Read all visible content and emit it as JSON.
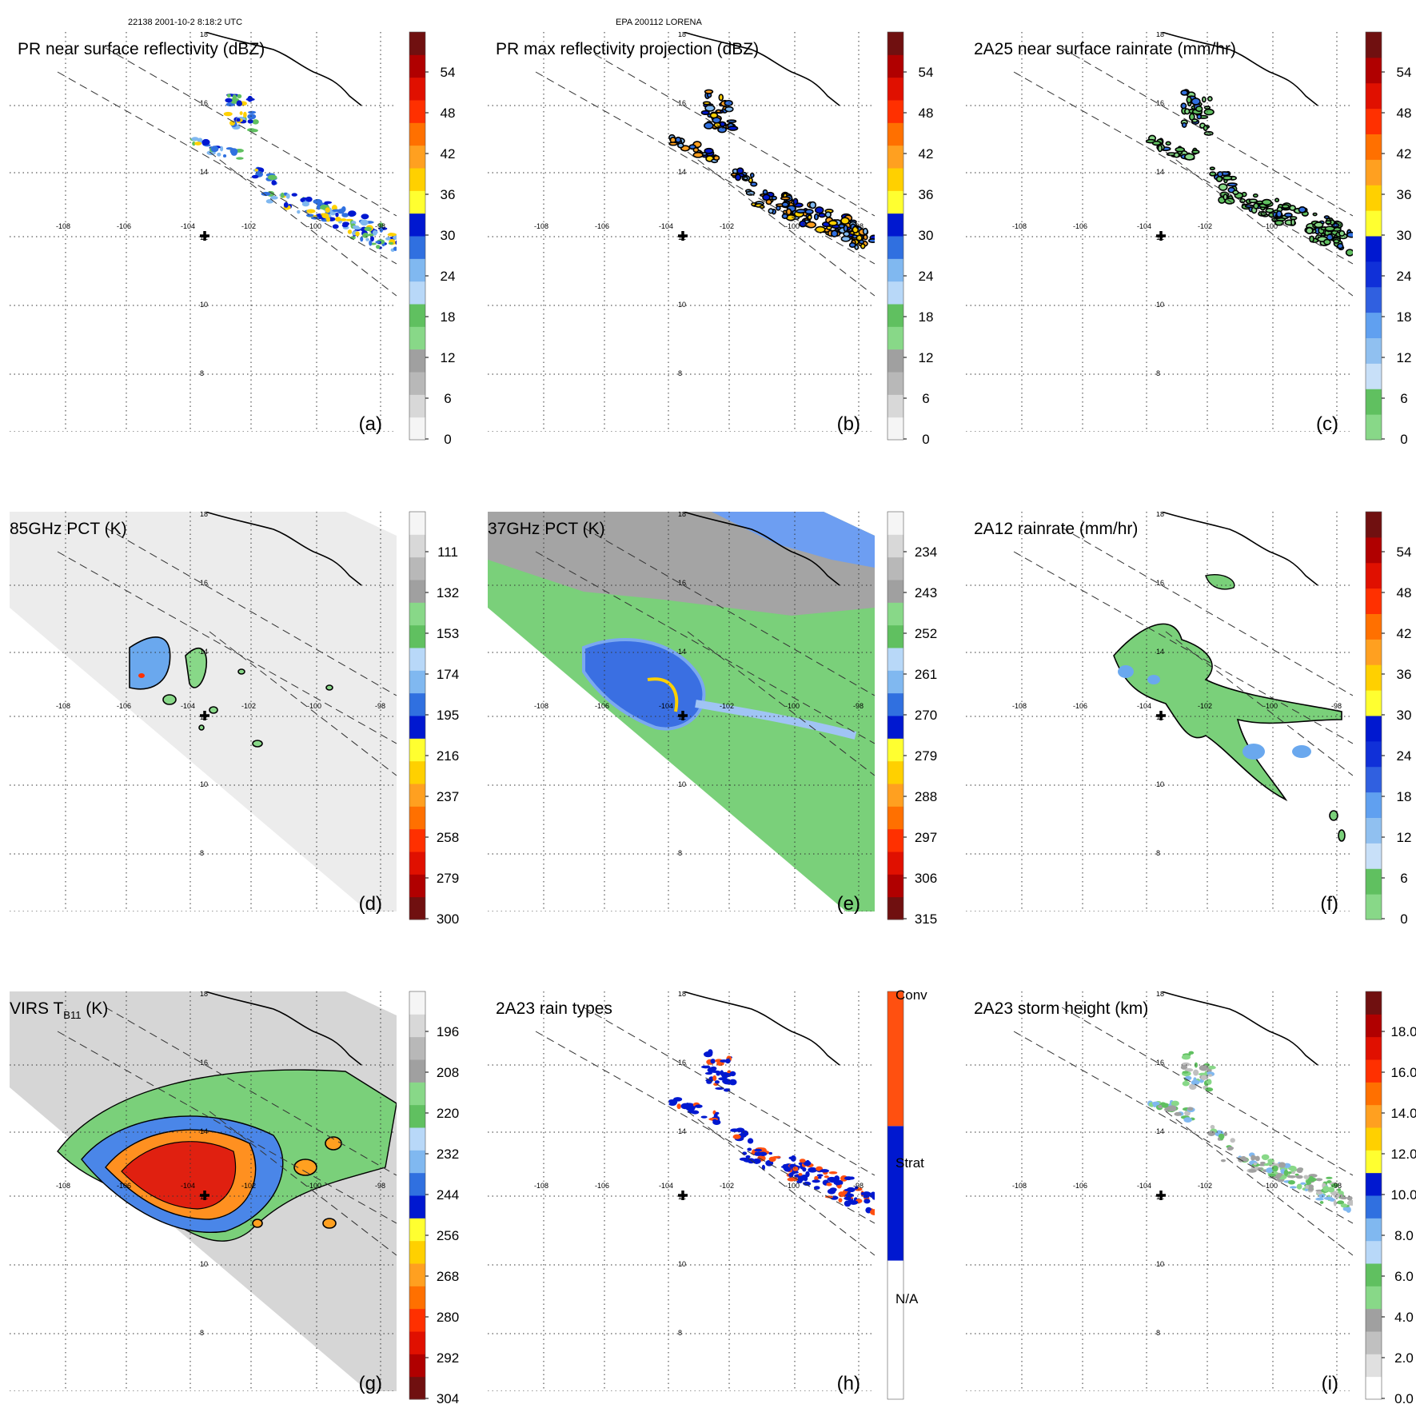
{
  "header": {
    "left": "22138 2001-10-2 8:18:2 UTC",
    "center": "EPA 200112 LORENA"
  },
  "lon_ticks": [
    "-108",
    "-106",
    "-104",
    "-102",
    "-100",
    "-98"
  ],
  "lat_ticks": [
    "18",
    "16",
    "14",
    "12",
    "10",
    "8"
  ],
  "panels": [
    {
      "id": "a",
      "label": "(a)",
      "title": "PR near surface reflectivity (dBZ)",
      "type": "swath_pr",
      "colorbar": {
        "scheme": "dbz",
        "ticks": [
          "54",
          "48",
          "42",
          "36",
          "30",
          "24",
          "18",
          "12",
          "6",
          "0"
        ]
      }
    },
    {
      "id": "b",
      "label": "(b)",
      "title": "PR max reflectivity projection (dBZ)",
      "type": "swath_pr",
      "colorbar": {
        "scheme": "dbz",
        "ticks": [
          "54",
          "48",
          "42",
          "36",
          "30",
          "24",
          "18",
          "12",
          "6",
          "0"
        ]
      }
    },
    {
      "id": "c",
      "label": "(c)",
      "title": "2A25 near surface rainrate (mm/hr)",
      "type": "swath_pr",
      "colorbar": {
        "scheme": "rain",
        "ticks": [
          "54",
          "48",
          "42",
          "36",
          "30",
          "24",
          "18",
          "12",
          "6",
          "0"
        ]
      }
    },
    {
      "id": "d",
      "label": "(d)",
      "title": "85GHz PCT (K)",
      "type": "tmi_gray",
      "colorbar": {
        "scheme": "pct",
        "ticks": [
          "111",
          "132",
          "153",
          "174",
          "195",
          "216",
          "237",
          "258",
          "279",
          "300"
        ]
      }
    },
    {
      "id": "e",
      "label": "(e)",
      "title": "37GHz PCT (K)",
      "type": "tmi_green",
      "colorbar": {
        "scheme": "pct",
        "ticks": [
          "234",
          "243",
          "252",
          "261",
          "270",
          "279",
          "288",
          "297",
          "306",
          "315"
        ]
      }
    },
    {
      "id": "f",
      "label": "(f)",
      "title": "2A12 rainrate (mm/hr)",
      "type": "tmi_rain",
      "colorbar": {
        "scheme": "rain",
        "ticks": [
          "54",
          "48",
          "42",
          "36",
          "30",
          "24",
          "18",
          "12",
          "6",
          "0"
        ]
      }
    },
    {
      "id": "g",
      "label": "(g)",
      "title": "VIRS T",
      "title_sub": "B11",
      "title_suffix": " (K)",
      "type": "virs",
      "colorbar": {
        "scheme": "pct",
        "ticks": [
          "196",
          "208",
          "220",
          "232",
          "244",
          "256",
          "268",
          "280",
          "292",
          "304"
        ]
      }
    },
    {
      "id": "h",
      "label": "(h)",
      "title": "2A23 rain types",
      "type": "swath_pr",
      "colorbar": {
        "scheme": "raintype",
        "ticks": [
          "Conv",
          "Strat",
          "N/A"
        ]
      }
    },
    {
      "id": "i",
      "label": "(i)",
      "title": "2A23 storm height (km)",
      "type": "swath_pr",
      "colorbar": {
        "scheme": "height",
        "ticks": [
          "18.0",
          "16.0",
          "14.0",
          "12.0",
          "10.0",
          "8.0",
          "6.0",
          "4.0",
          "2.0",
          "0.0"
        ]
      }
    }
  ],
  "colors": {
    "dbz": [
      "#f5f5f5",
      "#d8d8d8",
      "#b8b8b8",
      "#a0a0a0",
      "#88d888",
      "#60c060",
      "#b8d8f8",
      "#80b8f0",
      "#3070e0",
      "#0018d0",
      "#ffff30",
      "#ffd000",
      "#ffa020",
      "#ff7000",
      "#ff3000",
      "#e01000",
      "#b00000",
      "#701010"
    ],
    "rain": [
      "#88d888",
      "#60c060",
      "#c8e0f8",
      "#90c0f0",
      "#60a0f0",
      "#3060e0",
      "#1030d8",
      "#0018d0",
      "#ffff30",
      "#ffd000",
      "#ffa020",
      "#ff7000",
      "#ff3000",
      "#e01000",
      "#b00000",
      "#701010"
    ],
    "raintype": [
      "#ffffff",
      "#0018d0",
      "#ff5010"
    ],
    "height": [
      "#ffffff",
      "#e0e0e0",
      "#c0c0c0",
      "#a0a0a0",
      "#88d888",
      "#60c060",
      "#b8d8f8",
      "#80b8f0",
      "#3070e0",
      "#0018d0",
      "#ffff30",
      "#ffd000",
      "#ffa020",
      "#ff7000",
      "#ff3000",
      "#e01000",
      "#b00000",
      "#701010"
    ]
  }
}
